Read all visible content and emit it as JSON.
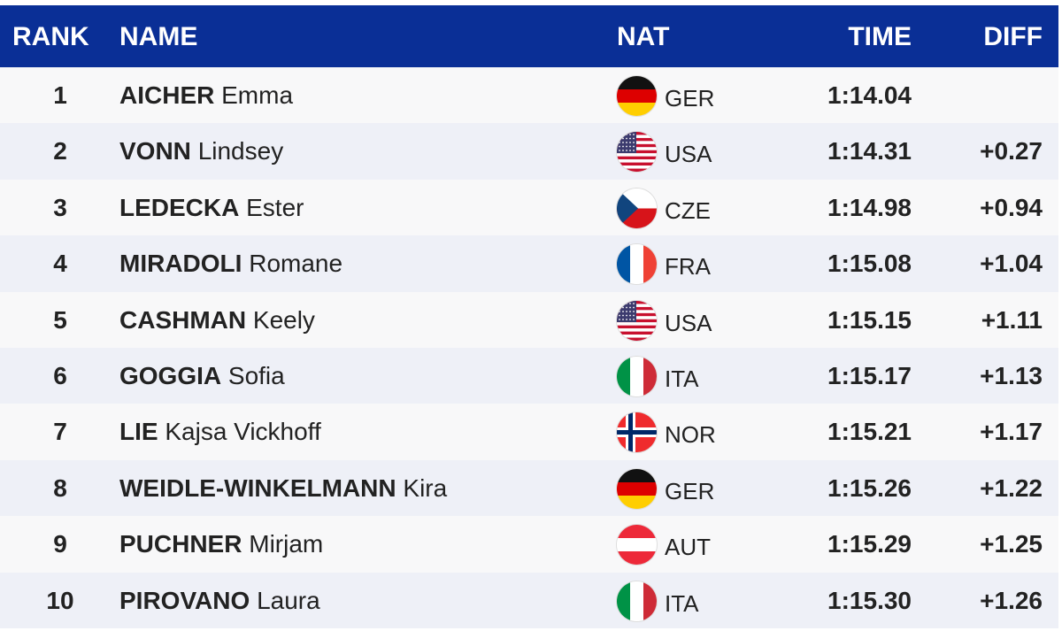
{
  "header": {
    "rank": "RANK",
    "name": "NAME",
    "nat": "NAT",
    "time": "TIME",
    "diff": "DIFF"
  },
  "colors": {
    "header_bg": "#0a2f96"
  },
  "rows": [
    {
      "rank": "1",
      "surname": "AICHER",
      "given": "Emma",
      "nat": "GER",
      "flag": "germany-flag-icon",
      "time": "1:14.04",
      "diff": ""
    },
    {
      "rank": "2",
      "surname": "VONN",
      "given": "Lindsey",
      "nat": "USA",
      "flag": "usa-flag-icon",
      "time": "1:14.31",
      "diff": "+0.27"
    },
    {
      "rank": "3",
      "surname": "LEDECKA",
      "given": "Ester",
      "nat": "CZE",
      "flag": "czech-flag-icon",
      "time": "1:14.98",
      "diff": "+0.94"
    },
    {
      "rank": "4",
      "surname": "MIRADOLI",
      "given": "Romane",
      "nat": "FRA",
      "flag": "france-flag-icon",
      "time": "1:15.08",
      "diff": "+1.04"
    },
    {
      "rank": "5",
      "surname": "CASHMAN",
      "given": "Keely",
      "nat": "USA",
      "flag": "usa-flag-icon",
      "time": "1:15.15",
      "diff": "+1.11"
    },
    {
      "rank": "6",
      "surname": "GOGGIA",
      "given": "Sofia",
      "nat": "ITA",
      "flag": "italy-flag-icon",
      "time": "1:15.17",
      "diff": "+1.13"
    },
    {
      "rank": "7",
      "surname": "LIE",
      "given": "Kajsa Vickhoff",
      "nat": "NOR",
      "flag": "norway-flag-icon",
      "time": "1:15.21",
      "diff": "+1.17"
    },
    {
      "rank": "8",
      "surname": "WEIDLE-WINKELMANN",
      "given": "Kira",
      "nat": "GER",
      "flag": "germany-flag-icon",
      "time": "1:15.26",
      "diff": "+1.22"
    },
    {
      "rank": "9",
      "surname": "PUCHNER",
      "given": "Mirjam",
      "nat": "AUT",
      "flag": "austria-flag-icon",
      "time": "1:15.29",
      "diff": "+1.25"
    },
    {
      "rank": "10",
      "surname": "PIROVANO",
      "given": "Laura",
      "nat": "ITA",
      "flag": "italy-flag-icon",
      "time": "1:15.30",
      "diff": "+1.26"
    }
  ]
}
